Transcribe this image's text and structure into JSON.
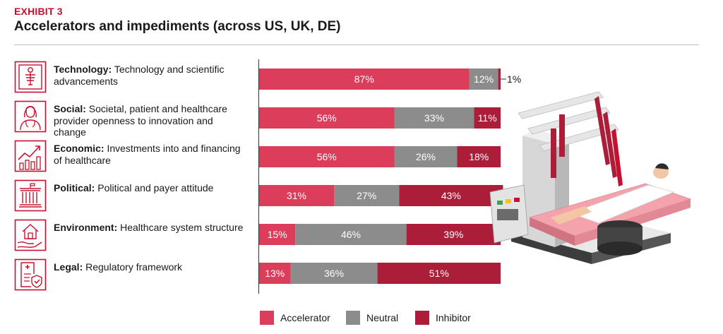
{
  "header": {
    "exhibit": "EXHIBIT 3",
    "title": "Accelerators and impediments (across US, UK, DE)"
  },
  "factors": [
    {
      "bold": "Technology:",
      "text": " Technology and scientific advancements",
      "icon": "technology-icon"
    },
    {
      "bold": "Social:",
      "text": " Societal, patient and healthcare provider openness to innovation and change",
      "icon": "social-icon"
    },
    {
      "bold": "Economic:",
      "text": " Investments into and financing of healthcare",
      "icon": "economic-icon"
    },
    {
      "bold": "Political:",
      "text": " Political and payer attitude",
      "icon": "political-icon"
    },
    {
      "bold": "Environment:",
      "text": " Healthcare system structure",
      "icon": "environment-icon"
    },
    {
      "bold": "Legal:",
      "text": " Regulatory framework",
      "icon": "legal-icon"
    }
  ],
  "colors": {
    "accelerator": "#dc3d5a",
    "neutral": "#8c8c8c",
    "inhibitor": "#ab1d38",
    "brand": "#c8102e"
  },
  "chart_data": {
    "type": "bar",
    "orientation": "horizontal",
    "stacked": true,
    "categories": [
      "Technology",
      "Social",
      "Economic",
      "Political",
      "Environment",
      "Legal"
    ],
    "series": [
      {
        "name": "Accelerator",
        "values": [
          87,
          56,
          56,
          31,
          15,
          13
        ],
        "labels": [
          "87%",
          "56%",
          "56%",
          "31%",
          "15%",
          "13%"
        ]
      },
      {
        "name": "Neutral",
        "values": [
          12,
          33,
          26,
          27,
          46,
          36
        ],
        "labels": [
          "12%",
          "33%",
          "26%",
          "27%",
          "46%",
          "36%"
        ]
      },
      {
        "name": "Inhibitor",
        "values": [
          1,
          11,
          18,
          43,
          39,
          51
        ],
        "labels": [
          "1%",
          "11%",
          "18%",
          "43%",
          "39%",
          "51%"
        ]
      }
    ],
    "xlim": [
      0,
      100
    ],
    "unit": "%",
    "legend": [
      "Accelerator",
      "Neutral",
      "Inhibitor"
    ],
    "legend_position": "bottom"
  }
}
